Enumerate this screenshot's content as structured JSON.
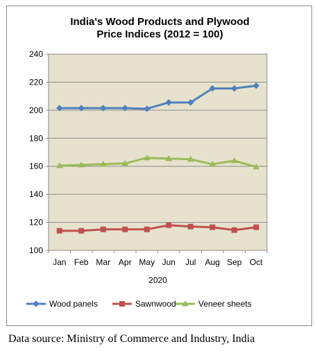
{
  "chart_data": {
    "type": "line",
    "title_line1": "India's Wood Products and Plywood",
    "title_line2": "Price Indices (2012 = 100)",
    "categories": [
      "Jan",
      "Feb",
      "Mar",
      "Apr",
      "May",
      "Jun",
      "Jul",
      "Aug",
      "Sep",
      "Oct"
    ],
    "xlabel": "2020",
    "ylabel": "",
    "ylim": [
      100,
      240
    ],
    "yticks": [
      100,
      120,
      140,
      160,
      180,
      200,
      220,
      240
    ],
    "grid": true,
    "legend_position": "bottom",
    "plot_background": "#e6e2cd",
    "series": [
      {
        "name": "Wood panels",
        "color": "#4f81bd",
        "marker": "diamond",
        "values": [
          201.5,
          201.5,
          201.5,
          201.5,
          201.0,
          205.5,
          205.5,
          215.5,
          215.5,
          217.5
        ]
      },
      {
        "name": "Sawnwood",
        "color": "#c0504d",
        "marker": "square",
        "values": [
          114.0,
          114.0,
          115.0,
          115.0,
          115.0,
          118.0,
          117.0,
          116.5,
          114.5,
          116.5
        ]
      },
      {
        "name": "Veneer sheets",
        "color": "#9bbb59",
        "marker": "triangle",
        "values": [
          160.5,
          161.0,
          161.5,
          162.0,
          166.0,
          165.5,
          165.0,
          161.5,
          164.0,
          159.5
        ]
      }
    ]
  },
  "source_text": "Data source: Ministry of Commerce and Industry, India"
}
